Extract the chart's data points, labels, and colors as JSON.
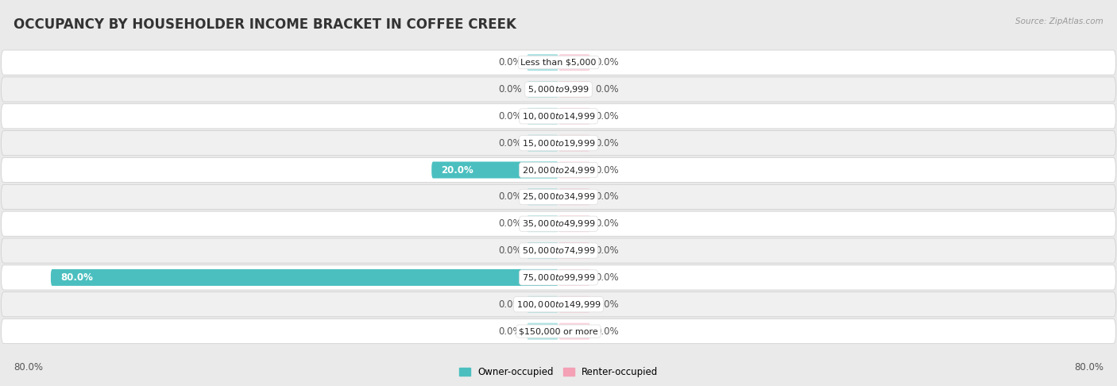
{
  "title": "OCCUPANCY BY HOUSEHOLDER INCOME BRACKET IN COFFEE CREEK",
  "source": "Source: ZipAtlas.com",
  "categories": [
    "Less than $5,000",
    "$5,000 to $9,999",
    "$10,000 to $14,999",
    "$15,000 to $19,999",
    "$20,000 to $24,999",
    "$25,000 to $34,999",
    "$35,000 to $49,999",
    "$50,000 to $74,999",
    "$75,000 to $99,999",
    "$100,000 to $149,999",
    "$150,000 or more"
  ],
  "owner_values": [
    0.0,
    0.0,
    0.0,
    0.0,
    20.0,
    0.0,
    0.0,
    0.0,
    80.0,
    0.0,
    0.0
  ],
  "renter_values": [
    0.0,
    0.0,
    0.0,
    0.0,
    0.0,
    0.0,
    0.0,
    0.0,
    0.0,
    0.0,
    0.0
  ],
  "owner_color": "#4bbfbf",
  "renter_color": "#f4a0b5",
  "bg_color": "#eaeaea",
  "row_bg_light": "#ffffff",
  "row_bg_dark": "#f0f0f0",
  "label_color": "#555555",
  "title_color": "#333333",
  "axis_max": 80.0,
  "stub_pct": 5.0,
  "legend_owner": "Owner-occupied",
  "legend_renter": "Renter-occupied",
  "x_left_label": "80.0%",
  "x_right_label": "80.0%",
  "title_fontsize": 12,
  "label_fontsize": 8.5,
  "cat_fontsize": 8.0
}
